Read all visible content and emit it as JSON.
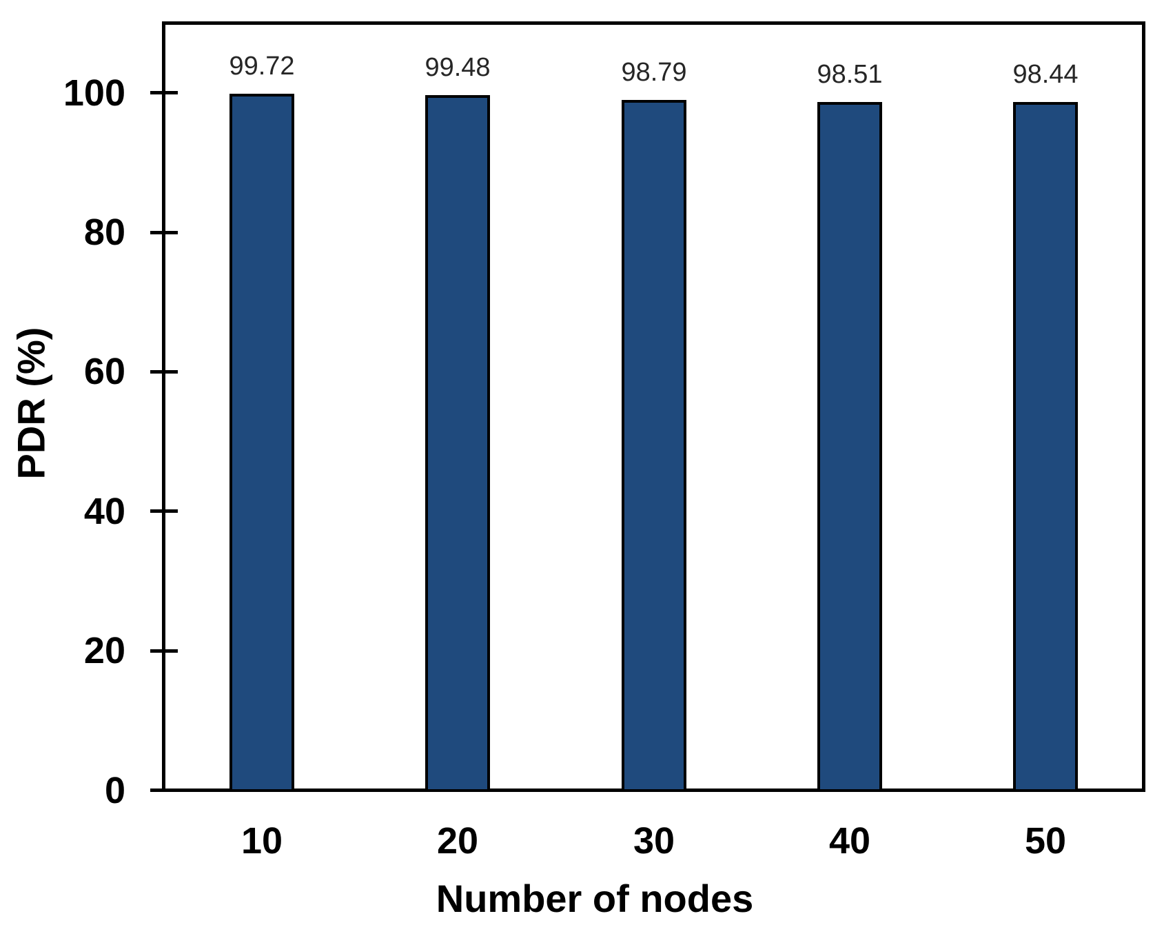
{
  "chart_data": {
    "type": "bar",
    "categories": [
      "10",
      "20",
      "30",
      "40",
      "50"
    ],
    "values": [
      99.72,
      99.48,
      98.79,
      98.51,
      98.44
    ],
    "data_labels": [
      "99.72",
      "99.48",
      "98.79",
      "98.51",
      "98.44"
    ],
    "xlabel": "Number of nodes",
    "ylabel": "PDR (%)",
    "yticks": [
      0,
      20,
      40,
      60,
      80,
      100
    ],
    "ytick_labels": [
      "0",
      "20",
      "40",
      "60",
      "80",
      "100"
    ],
    "ylim": [
      0,
      110
    ],
    "grid": "off",
    "legend": "none",
    "colors": {
      "bar_fill": "#1F4A7D",
      "bar_border": "#000000",
      "axis": "#000000",
      "data_label_text": "#262626",
      "tick_label_text": "#000000"
    }
  }
}
